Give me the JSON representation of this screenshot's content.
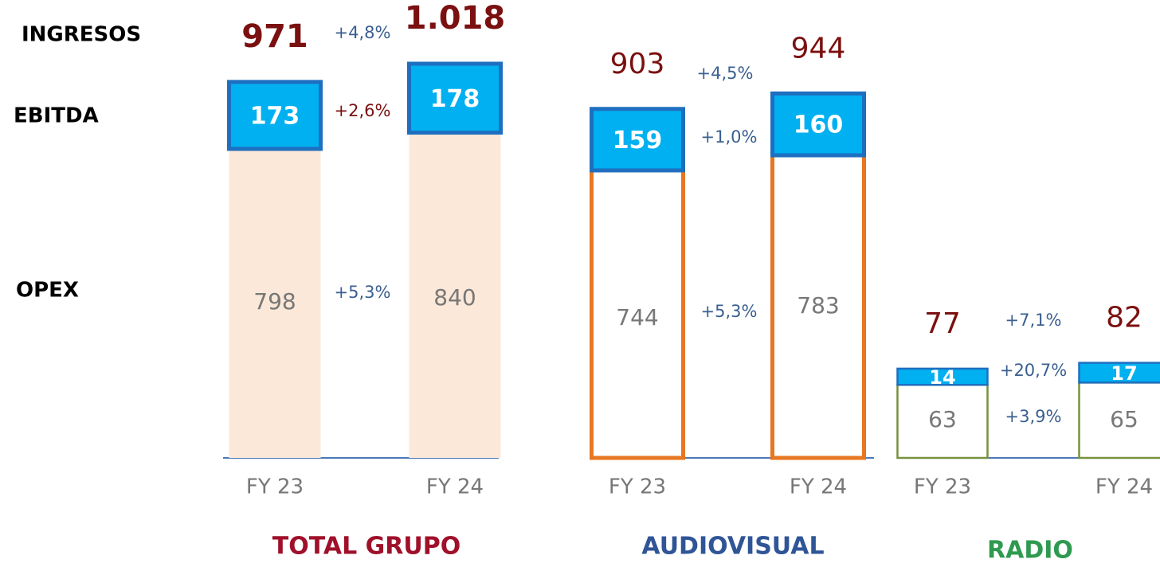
{
  "chart_data": [
    {
      "type": "stacked_bar",
      "title": "TOTAL GRUPO",
      "categories": [
        "FY 23",
        "FY 24"
      ],
      "ylim": [
        0,
        1018
      ],
      "series": [
        {
          "name": "OPEX",
          "values": [
            798,
            840
          ],
          "color": "#fce8d8",
          "stroke": "none"
        },
        {
          "name": "EBITDA",
          "values": [
            173,
            178
          ],
          "color": "#00b0f0",
          "stroke": "#1e6fc0"
        }
      ],
      "totals": {
        "name": "INGRESOS",
        "values": [
          971,
          1018
        ],
        "value_labels": [
          "971",
          "1.018"
        ],
        "color": "#7b1010"
      },
      "growth": {
        "values": [
          4.8,
          2.6,
          5.3
        ],
        "value_labels": [
          "+4,8%",
          "+2,6%",
          "+5,3%"
        ],
        "colors": [
          "#3a5f8f",
          "#7b1010",
          "#3a5f8f"
        ]
      },
      "title_color": "#a0102a"
    },
    {
      "type": "stacked_bar",
      "title": "AUDIOVISUAL",
      "categories": [
        "FY 23",
        "FY 24"
      ],
      "ylim": [
        0,
        1020
      ],
      "series": [
        {
          "values": [
            744,
            783
          ],
          "color": "#ffffff",
          "stroke": "#e87722"
        },
        {
          "values": [
            159,
            160
          ],
          "color": "#00b0f0",
          "stroke": "#1e6fc0"
        }
      ],
      "totals": {
        "values": [
          903,
          944
        ],
        "color": "#7b1010"
      },
      "growth": {
        "values": [
          4.5,
          1.0,
          5.3
        ],
        "value_labels": [
          "+4,5%",
          "+1,0%",
          "+5,3%"
        ],
        "colors": [
          "#3a5f8f",
          "#3a5f8f",
          "#3a5f8f"
        ]
      },
      "title_color": "#2f5597"
    },
    {
      "type": "stacked_bar",
      "title": "RADIO",
      "categories": [
        "FY 23",
        "FY 24"
      ],
      "ylim": [
        0,
        340
      ],
      "series": [
        {
          "values": [
            63,
            65
          ],
          "color": "#ffffff",
          "stroke": "#76923c"
        },
        {
          "values": [
            14,
            17
          ],
          "color": "#00b0f0",
          "stroke": "#1e6fc0"
        }
      ],
      "totals": {
        "values": [
          77,
          82
        ],
        "color": "#7b1010"
      },
      "growth": {
        "values": [
          7.1,
          20.7,
          3.9
        ],
        "value_labels": [
          "+7,1%",
          "+20,7%",
          "+3,9%"
        ],
        "colors": [
          "#3a5f8f",
          "#3a5f8f",
          "#3a5f8f"
        ]
      },
      "title_color": "#2e9a4f"
    }
  ]
}
